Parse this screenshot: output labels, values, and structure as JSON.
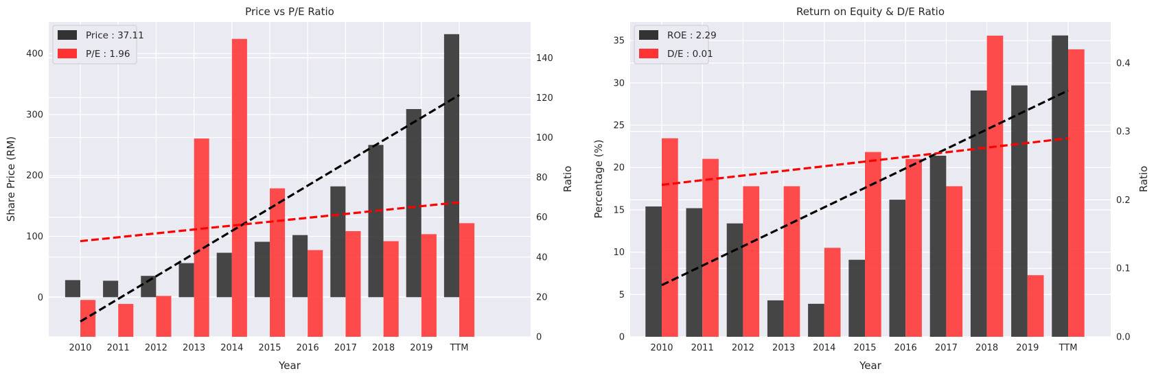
{
  "chart_data": [
    {
      "type": "bar",
      "title": "Price vs P/E Ratio",
      "xlabel": "Year",
      "ylabel": "Share Price (RM)",
      "ylabel_right": "Ratio",
      "categories": [
        "2010",
        "2011",
        "2012",
        "2013",
        "2014",
        "2015",
        "2016",
        "2017",
        "2018",
        "2019",
        "TTM"
      ],
      "ylim": [
        -65,
        452
      ],
      "yticks": [
        0,
        100,
        200,
        300,
        400
      ],
      "ylim_right": [
        0,
        158
      ],
      "yticks_right": [
        0,
        20,
        40,
        60,
        80,
        100,
        120,
        140
      ],
      "grid": true,
      "legend_position": "top-left",
      "series": [
        {
          "name": "Price : 37.11",
          "axis": "left",
          "color": "#333333",
          "values": [
            28,
            27,
            35,
            56,
            73,
            91,
            102,
            182,
            250,
            309,
            432
          ]
        },
        {
          "name": "P/E : 1.96",
          "axis": "right",
          "color": "#ff3333",
          "values": [
            18.5,
            16.5,
            20.5,
            99.5,
            149.5,
            74.5,
            43.5,
            53,
            48,
            51.5,
            57
          ]
        }
      ],
      "trendlines": [
        {
          "of": "Price : 37.11",
          "axis": "left",
          "color": "#000000",
          "from": [
            "2010",
            -40
          ],
          "to": [
            "TTM",
            332
          ]
        },
        {
          "of": "P/E : 1.96",
          "axis": "right",
          "color": "#ff0000",
          "from": [
            "2010",
            48
          ],
          "to": [
            "TTM",
            67.5
          ]
        }
      ]
    },
    {
      "type": "bar",
      "title": "Return on Equity & D/E Ratio",
      "xlabel": "Year",
      "ylabel": "Percentage (%)",
      "ylabel_right": "Ratio",
      "categories": [
        "2010",
        "2011",
        "2012",
        "2013",
        "2014",
        "2015",
        "2016",
        "2017",
        "2018",
        "2019",
        "TTM"
      ],
      "ylim": [
        0,
        37.2
      ],
      "yticks": [
        0,
        5,
        10,
        15,
        20,
        25,
        30,
        35
      ],
      "ylim_right": [
        0,
        0.46
      ],
      "yticks_right": [
        0.0,
        0.1,
        0.2,
        0.3,
        0.4
      ],
      "grid": true,
      "legend_position": "top-left",
      "series": [
        {
          "name": "ROE : 2.29",
          "axis": "left",
          "color": "#333333",
          "values": [
            15.4,
            15.2,
            13.4,
            4.3,
            3.9,
            9.1,
            16.2,
            21.4,
            29.1,
            29.7,
            35.6
          ]
        },
        {
          "name": "D/E : 0.01",
          "axis": "right",
          "color": "#ff3333",
          "values": [
            0.29,
            0.26,
            0.22,
            0.22,
            0.13,
            0.27,
            0.26,
            0.22,
            0.44,
            0.09,
            0.42
          ]
        }
      ],
      "trendlines": [
        {
          "of": "ROE : 2.29",
          "axis": "left",
          "color": "#000000",
          "from": [
            "2010",
            6.1
          ],
          "to": [
            "TTM",
            29.1
          ]
        },
        {
          "of": "D/E : 0.01",
          "axis": "right",
          "color": "#ff0000",
          "from": [
            "2010",
            0.222
          ],
          "to": [
            "TTM",
            0.29
          ]
        }
      ]
    }
  ]
}
